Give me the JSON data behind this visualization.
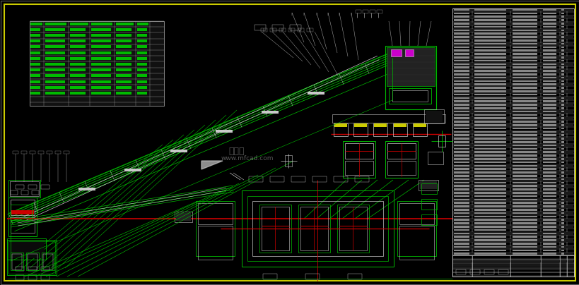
{
  "bg_color": "#000000",
  "outer_border_color": "#606060",
  "inner_border_color": "#cccc00",
  "fig_width": 8.2,
  "fig_height": 4.04,
  "dpi": 100,
  "green": "#00bb00",
  "bright_green": "#00ff00",
  "red": "#cc0000",
  "white": "#c8c8c8",
  "bright_white": "#ffffff",
  "yellow": "#cccc00",
  "cyan": "#00cccc",
  "magenta": "#cc00cc",
  "gray": "#666666",
  "light_gray": "#999999",
  "dark_gray": "#333333"
}
